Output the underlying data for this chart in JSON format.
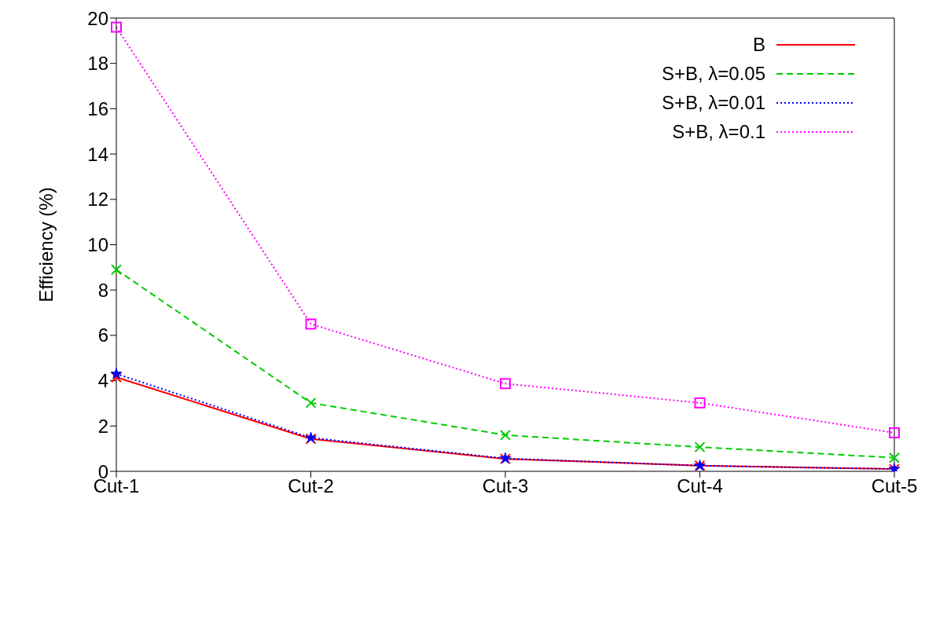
{
  "chart_data": {
    "type": "line",
    "ylabel": "Efficiency (%)",
    "categories": [
      "Cut-1",
      "Cut-2",
      "Cut-3",
      "Cut-4",
      "Cut-5"
    ],
    "series": [
      {
        "name": "B",
        "color": "#ff0000",
        "marker": "cross",
        "line_style": "solid",
        "values": [
          4.15,
          1.43,
          0.55,
          0.25,
          0.1
        ]
      },
      {
        "name": "S+B, λ=0.05",
        "color": "#00cc00",
        "marker": "cross",
        "line_style": "dashed",
        "values": [
          8.9,
          3.02,
          1.6,
          1.07,
          0.6
        ]
      },
      {
        "name": "S+B, λ=0.01",
        "color": "#0000ff",
        "marker": "star",
        "line_style": "dotted",
        "values": [
          4.3,
          1.48,
          0.57,
          0.25,
          0.1
        ]
      },
      {
        "name": "S+B, λ=0.1",
        "color": "#ff00ff",
        "marker": "square",
        "line_style": "dotted",
        "values": [
          19.6,
          6.5,
          3.87,
          3.02,
          1.7
        ]
      }
    ],
    "ylim": [
      0,
      20
    ],
    "yticks": [
      0,
      2,
      4,
      6,
      8,
      10,
      12,
      14,
      16,
      18,
      20
    ],
    "grid": false,
    "legend": "top right"
  }
}
